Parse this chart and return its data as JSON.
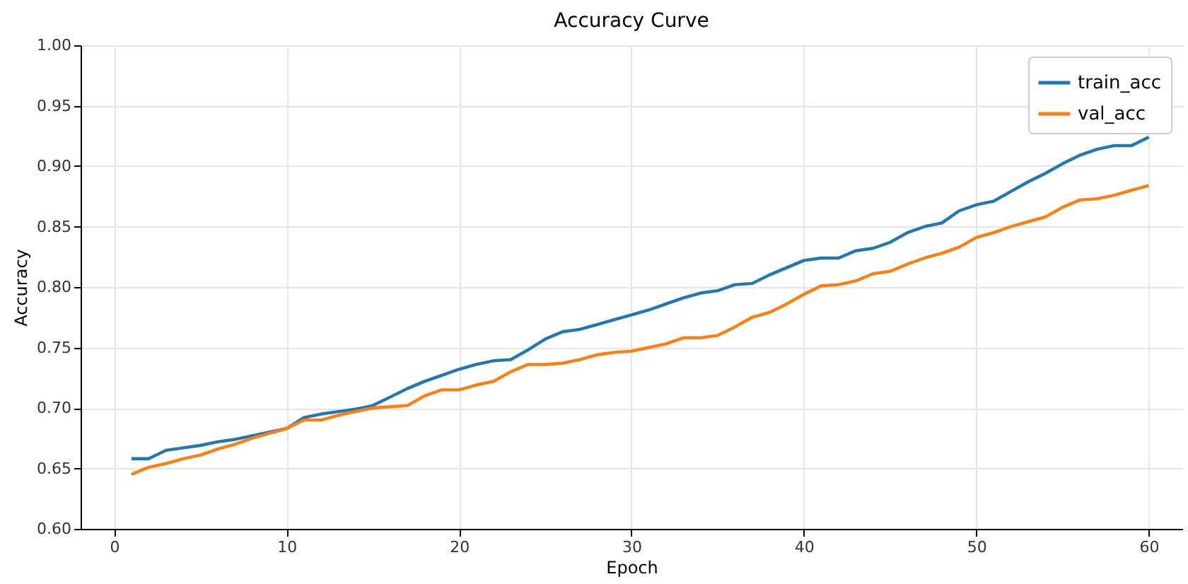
{
  "chart_data": {
    "type": "line",
    "title": "Accuracy Curve",
    "xlabel": "Epoch",
    "ylabel": "Accuracy",
    "x": [
      1,
      2,
      3,
      4,
      5,
      6,
      7,
      8,
      9,
      10,
      11,
      12,
      13,
      14,
      15,
      16,
      17,
      18,
      19,
      20,
      21,
      22,
      23,
      24,
      25,
      26,
      27,
      28,
      29,
      30,
      31,
      32,
      33,
      34,
      35,
      36,
      37,
      38,
      39,
      40,
      41,
      42,
      43,
      44,
      45,
      46,
      47,
      48,
      49,
      50,
      51,
      52,
      53,
      54,
      55,
      56,
      57,
      58,
      59,
      60
    ],
    "series": [
      {
        "name": "train_acc",
        "color": "#1f77b4",
        "values": [
          0.658,
          0.658,
          0.665,
          0.667,
          0.669,
          0.672,
          0.674,
          0.677,
          0.68,
          0.683,
          0.692,
          0.695,
          0.697,
          0.699,
          0.702,
          0.709,
          0.716,
          0.722,
          0.727,
          0.732,
          0.736,
          0.739,
          0.74,
          0.748,
          0.757,
          0.763,
          0.765,
          0.769,
          0.773,
          0.777,
          0.781,
          0.786,
          0.791,
          0.795,
          0.797,
          0.802,
          0.803,
          0.81,
          0.816,
          0.822,
          0.824,
          0.824,
          0.83,
          0.832,
          0.837,
          0.845,
          0.85,
          0.853,
          0.863,
          0.868,
          0.871,
          0.879,
          0.887,
          0.894,
          0.902,
          0.909,
          0.914,
          0.917,
          0.917,
          0.924
        ]
      },
      {
        "name": "val_acc",
        "color": "#ff7f0e",
        "values": [
          0.645,
          0.651,
          0.654,
          0.658,
          0.661,
          0.666,
          0.67,
          0.675,
          0.679,
          0.683,
          0.69,
          0.69,
          0.694,
          0.697,
          0.7,
          0.701,
          0.702,
          0.71,
          0.715,
          0.715,
          0.719,
          0.722,
          0.73,
          0.736,
          0.736,
          0.737,
          0.74,
          0.744,
          0.746,
          0.747,
          0.75,
          0.753,
          0.758,
          0.758,
          0.76,
          0.767,
          0.775,
          0.779,
          0.786,
          0.794,
          0.801,
          0.802,
          0.805,
          0.811,
          0.813,
          0.819,
          0.824,
          0.828,
          0.833,
          0.841,
          0.845,
          0.85,
          0.854,
          0.858,
          0.866,
          0.872,
          0.873,
          0.876,
          0.88,
          0.884
        ]
      }
    ],
    "xlim": [
      -1.95,
      61.95
    ],
    "xticks": [
      0,
      10,
      20,
      30,
      40,
      50,
      60
    ],
    "ylim": [
      0.6,
      1.0
    ],
    "yticks": [
      {
        "value": 0.6,
        "label": "0.60"
      },
      {
        "value": 0.65,
        "label": "0.65"
      },
      {
        "value": 0.7,
        "label": "0.70"
      },
      {
        "value": 0.75,
        "label": "0.75"
      },
      {
        "value": 0.8,
        "label": "0.80"
      },
      {
        "value": 0.85,
        "label": "0.85"
      },
      {
        "value": 0.9,
        "label": "0.90"
      },
      {
        "value": 0.95,
        "label": "0.95"
      },
      {
        "value": 1.0,
        "label": "1.00"
      }
    ],
    "grid": true,
    "legend": "top right",
    "marker": "none",
    "line_style": "solid"
  }
}
